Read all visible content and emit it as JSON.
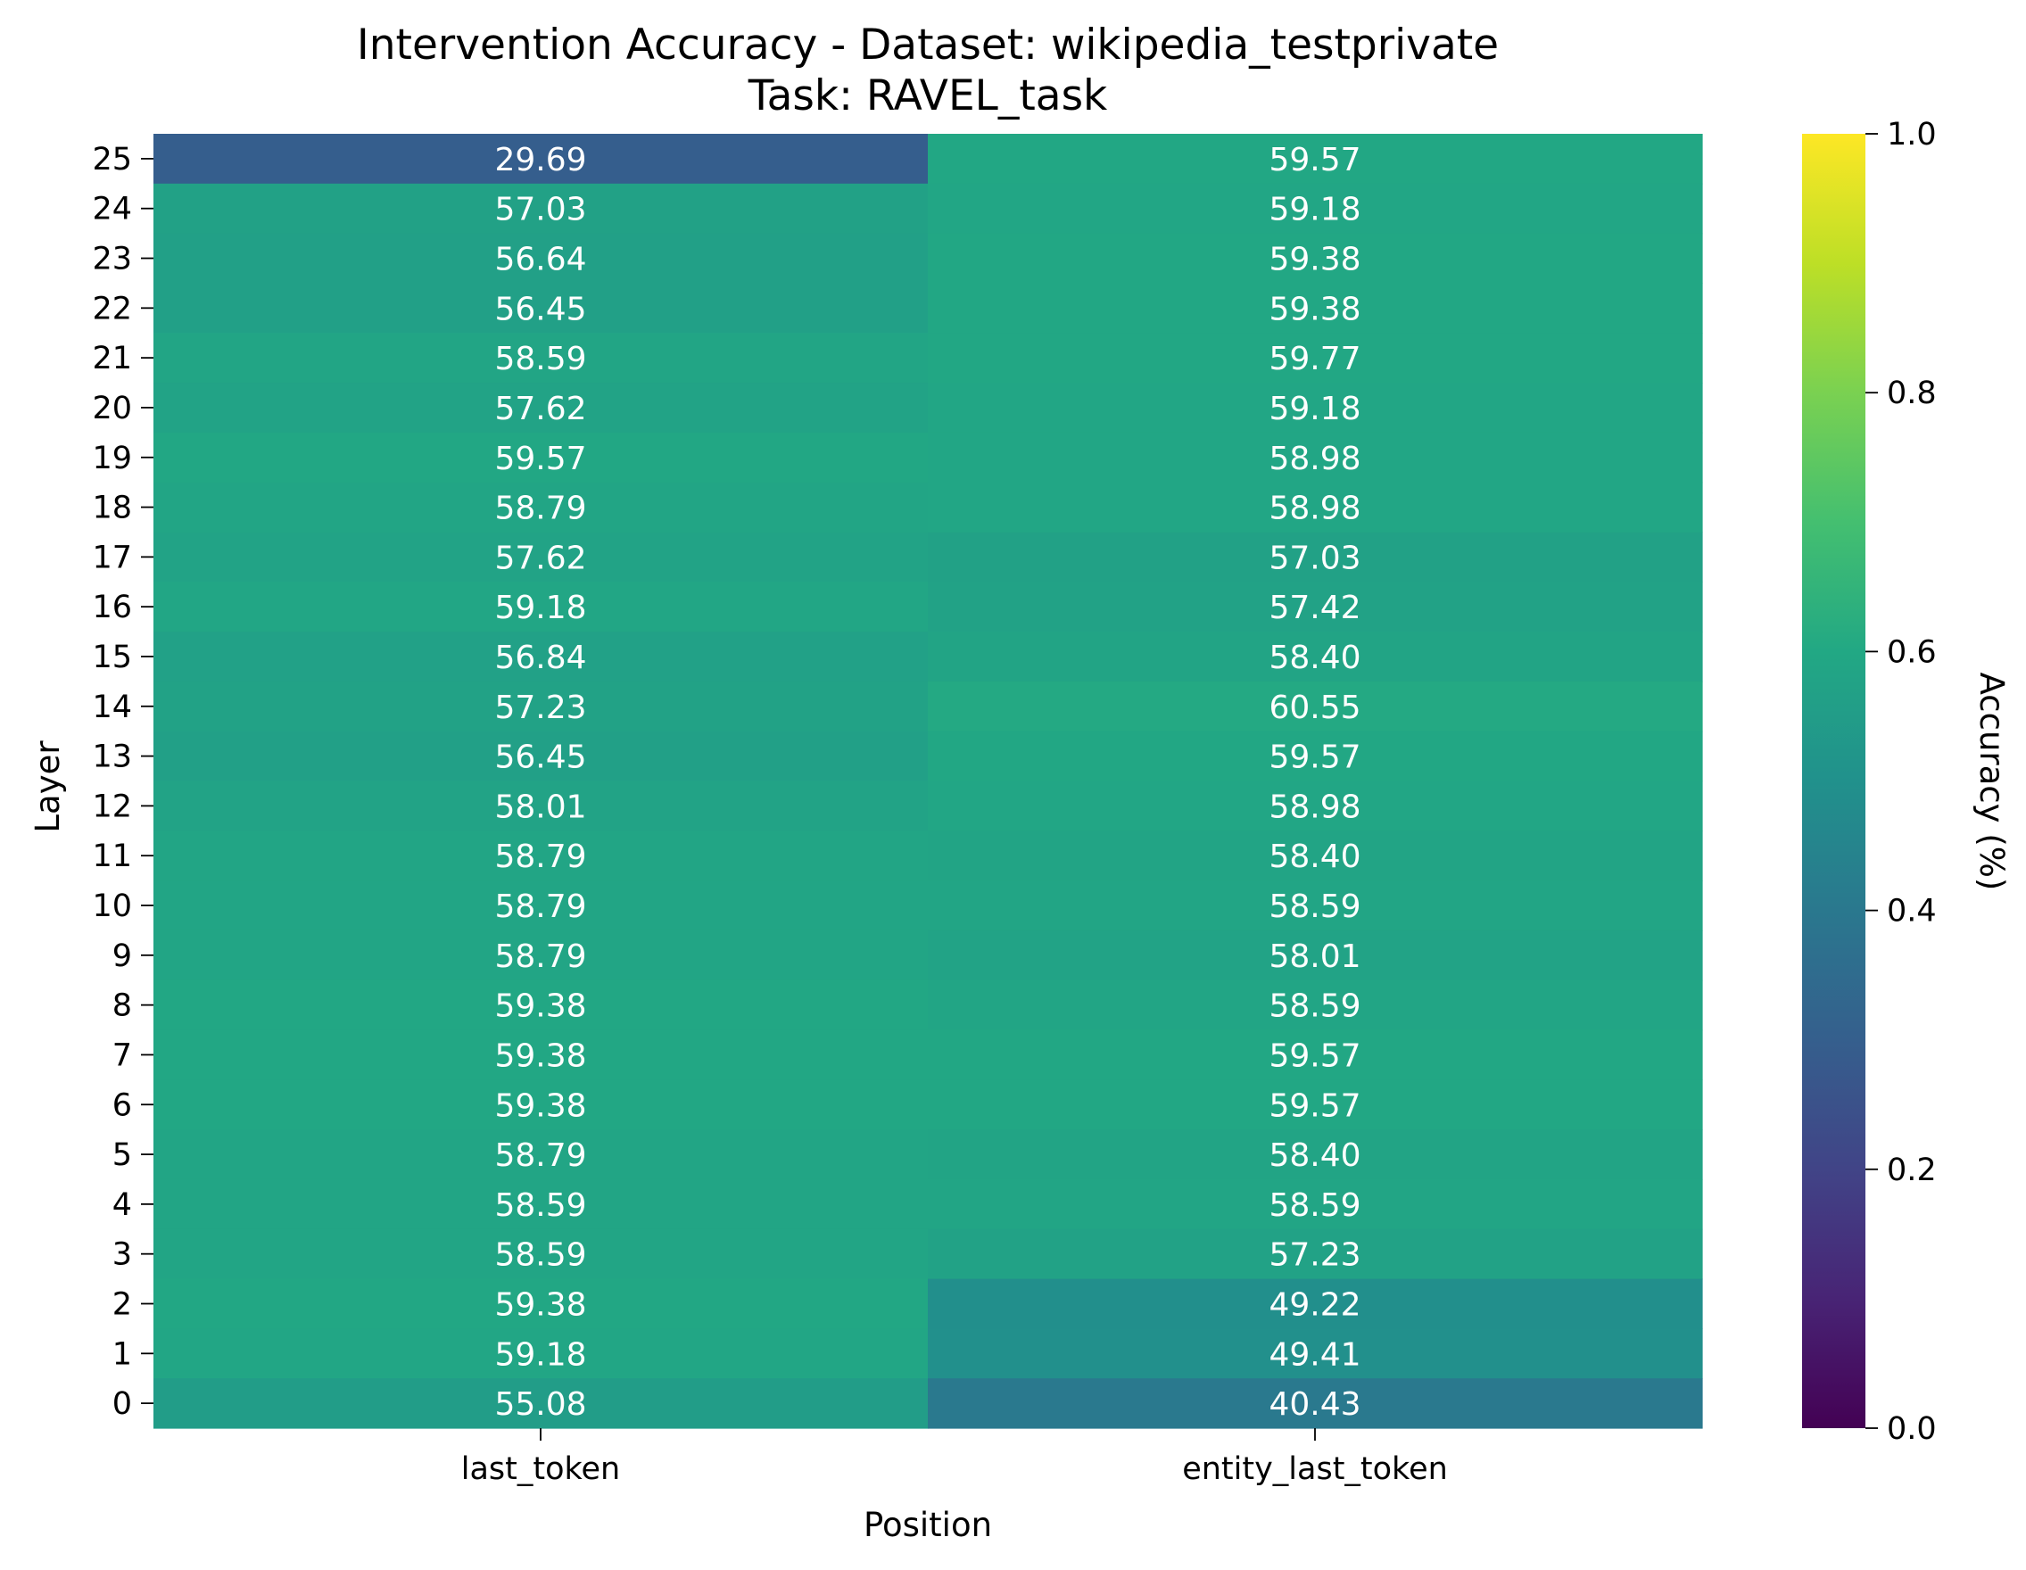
{
  "chart_data": {
    "type": "heatmap",
    "title": "Intervention Accuracy - Dataset: wikipedia_testprivate",
    "subtitle": "Task: RAVEL_task",
    "xlabel": "Position",
    "ylabel": "Layer",
    "x_categories": [
      "last_token",
      "entity_last_token"
    ],
    "y_categories": [
      "25",
      "24",
      "23",
      "22",
      "21",
      "20",
      "19",
      "18",
      "17",
      "16",
      "15",
      "14",
      "13",
      "12",
      "11",
      "10",
      "9",
      "8",
      "7",
      "6",
      "5",
      "4",
      "3",
      "2",
      "1",
      "0"
    ],
    "values": [
      [
        29.69,
        59.57
      ],
      [
        57.03,
        59.18
      ],
      [
        56.64,
        59.38
      ],
      [
        56.45,
        59.38
      ],
      [
        58.59,
        59.77
      ],
      [
        57.62,
        59.18
      ],
      [
        59.57,
        58.98
      ],
      [
        58.79,
        58.98
      ],
      [
        57.62,
        57.03
      ],
      [
        59.18,
        57.42
      ],
      [
        56.84,
        58.4
      ],
      [
        57.23,
        60.55
      ],
      [
        56.45,
        59.57
      ],
      [
        58.01,
        58.98
      ],
      [
        58.79,
        58.4
      ],
      [
        58.79,
        58.59
      ],
      [
        58.79,
        58.01
      ],
      [
        59.38,
        58.59
      ],
      [
        59.38,
        59.57
      ],
      [
        59.38,
        59.57
      ],
      [
        58.79,
        58.4
      ],
      [
        58.59,
        58.59
      ],
      [
        58.59,
        57.23
      ],
      [
        59.38,
        49.22
      ],
      [
        59.18,
        49.41
      ],
      [
        55.08,
        40.43
      ]
    ],
    "value_labels": [
      [
        "29.69",
        "59.57"
      ],
      [
        "57.03",
        "59.18"
      ],
      [
        "56.64",
        "59.38"
      ],
      [
        "56.45",
        "59.38"
      ],
      [
        "58.59",
        "59.77"
      ],
      [
        "57.62",
        "59.18"
      ],
      [
        "59.57",
        "58.98"
      ],
      [
        "58.79",
        "58.98"
      ],
      [
        "57.62",
        "57.03"
      ],
      [
        "59.18",
        "57.42"
      ],
      [
        "56.84",
        "58.40"
      ],
      [
        "57.23",
        "60.55"
      ],
      [
        "56.45",
        "59.57"
      ],
      [
        "58.01",
        "58.98"
      ],
      [
        "58.79",
        "58.40"
      ],
      [
        "58.79",
        "58.59"
      ],
      [
        "58.79",
        "58.01"
      ],
      [
        "59.38",
        "58.59"
      ],
      [
        "59.38",
        "59.57"
      ],
      [
        "59.38",
        "59.57"
      ],
      [
        "58.79",
        "58.40"
      ],
      [
        "58.59",
        "58.59"
      ],
      [
        "58.59",
        "57.23"
      ],
      [
        "59.38",
        "49.22"
      ],
      [
        "59.18",
        "49.41"
      ],
      [
        "55.08",
        "40.43"
      ]
    ],
    "colorbar": {
      "label": "Accuracy (%)",
      "min": 0.0,
      "max": 1.0,
      "ticks": [
        "0.0",
        "0.2",
        "0.4",
        "0.6",
        "0.8",
        "1.0"
      ],
      "colormap": "viridis"
    },
    "grid": false,
    "legend": "none"
  }
}
